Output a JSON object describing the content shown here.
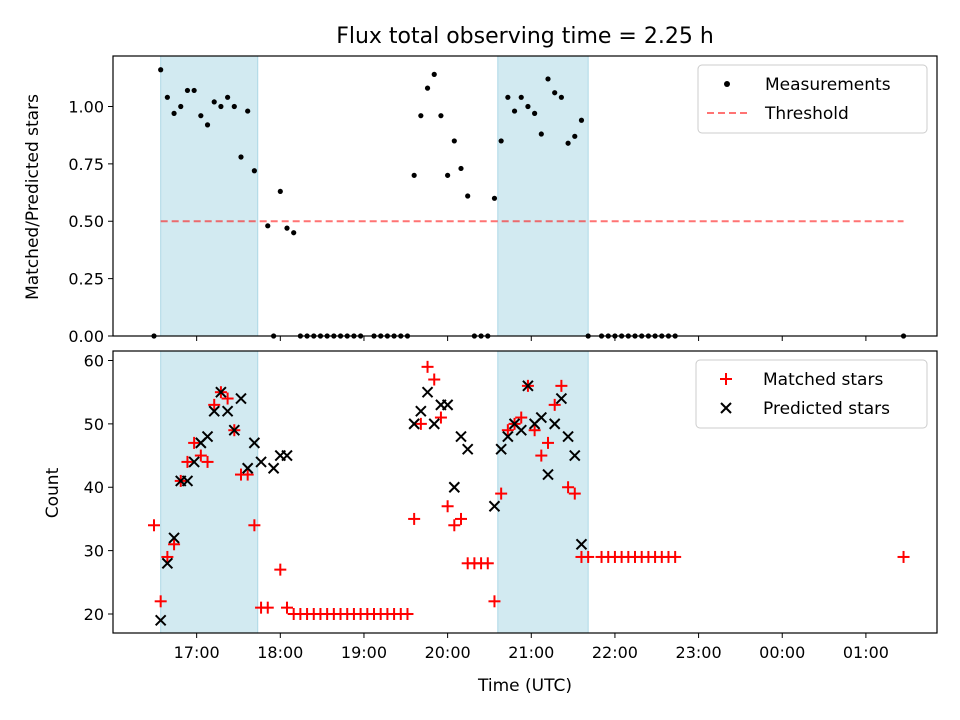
{
  "chart_data": {
    "title": "Flux total observing time = 2.25 h",
    "xlabel": "Time (UTC)",
    "x_ticks": [
      {
        "t": 17,
        "label": "17:00"
      },
      {
        "t": 18,
        "label": "18:00"
      },
      {
        "t": 19,
        "label": "19:00"
      },
      {
        "t": 20,
        "label": "20:00"
      },
      {
        "t": 21,
        "label": "21:00"
      },
      {
        "t": 22,
        "label": "22:00"
      },
      {
        "t": 23,
        "label": "23:00"
      },
      {
        "t": 24,
        "label": "00:00"
      },
      {
        "t": 25,
        "label": "01:00"
      }
    ],
    "xlim": [
      16.0,
      25.85
    ],
    "shaded_intervals": [
      [
        16.57,
        17.73
      ],
      [
        20.6,
        21.68
      ]
    ],
    "colors": {
      "shade": "#add8e6",
      "threshold": "#ff0000",
      "matched": "#ff0000",
      "predicted": "#000000",
      "measurement": "#000000"
    },
    "panels": [
      {
        "type": "scatter",
        "ylabel": "Matched/Predicted stars",
        "ylim": [
          0,
          1.22
        ],
        "y_ticks": [
          0.0,
          0.25,
          0.5,
          0.75,
          1.0
        ],
        "y_tick_labels": [
          "0.00",
          "0.25",
          "0.50",
          "0.75",
          "1.00"
        ],
        "legend": [
          "Measurements",
          "Threshold"
        ],
        "threshold": {
          "y": 0.5,
          "x_range": [
            16.57,
            25.45
          ]
        },
        "series": [
          {
            "name": "Measurements",
            "points": [
              [
                16.49,
                0.0
              ],
              [
                16.57,
                1.16
              ],
              [
                16.65,
                1.04
              ],
              [
                16.73,
                0.97
              ],
              [
                16.81,
                1.0
              ],
              [
                16.89,
                1.07
              ],
              [
                16.97,
                1.07
              ],
              [
                17.05,
                0.96
              ],
              [
                17.13,
                0.92
              ],
              [
                17.21,
                1.02
              ],
              [
                17.29,
                1.0
              ],
              [
                17.37,
                1.04
              ],
              [
                17.45,
                1.0
              ],
              [
                17.53,
                0.78
              ],
              [
                17.61,
                0.98
              ],
              [
                17.69,
                0.72
              ],
              [
                17.85,
                0.48
              ],
              [
                17.92,
                0.0
              ],
              [
                18.0,
                0.63
              ],
              [
                18.08,
                0.47
              ],
              [
                18.16,
                0.45
              ],
              [
                18.24,
                0.0
              ],
              [
                18.32,
                0.0
              ],
              [
                18.4,
                0.0
              ],
              [
                18.48,
                0.0
              ],
              [
                18.56,
                0.0
              ],
              [
                18.64,
                0.0
              ],
              [
                18.72,
                0.0
              ],
              [
                18.8,
                0.0
              ],
              [
                18.88,
                0.0
              ],
              [
                18.96,
                0.0
              ],
              [
                19.12,
                0.0
              ],
              [
                19.2,
                0.0
              ],
              [
                19.28,
                0.0
              ],
              [
                19.36,
                0.0
              ],
              [
                19.44,
                0.0
              ],
              [
                19.52,
                0.0
              ],
              [
                19.6,
                0.7
              ],
              [
                19.68,
                0.96
              ],
              [
                19.76,
                1.08
              ],
              [
                19.84,
                1.14
              ],
              [
                19.92,
                0.96
              ],
              [
                20.0,
                0.7
              ],
              [
                20.08,
                0.85
              ],
              [
                20.16,
                0.73
              ],
              [
                20.24,
                0.61
              ],
              [
                20.32,
                0.0
              ],
              [
                20.4,
                0.0
              ],
              [
                20.48,
                0.0
              ],
              [
                20.56,
                0.6
              ],
              [
                20.64,
                0.85
              ],
              [
                20.72,
                1.04
              ],
              [
                20.8,
                0.98
              ],
              [
                20.88,
                1.04
              ],
              [
                20.96,
                1.0
              ],
              [
                21.04,
                0.97
              ],
              [
                21.12,
                0.88
              ],
              [
                21.2,
                1.12
              ],
              [
                21.28,
                1.06
              ],
              [
                21.36,
                1.04
              ],
              [
                21.44,
                0.84
              ],
              [
                21.52,
                0.87
              ],
              [
                21.6,
                0.94
              ],
              [
                21.68,
                0.0
              ],
              [
                21.84,
                0.0
              ],
              [
                21.92,
                0.0
              ],
              [
                22.0,
                0.0
              ],
              [
                22.08,
                0.0
              ],
              [
                22.16,
                0.0
              ],
              [
                22.24,
                0.0
              ],
              [
                22.32,
                0.0
              ],
              [
                22.4,
                0.0
              ],
              [
                22.48,
                0.0
              ],
              [
                22.56,
                0.0
              ],
              [
                22.64,
                0.0
              ],
              [
                22.72,
                0.0
              ],
              [
                25.45,
                0.0
              ]
            ]
          }
        ]
      },
      {
        "type": "scatter",
        "ylabel": "Count",
        "ylim": [
          17,
          61.5
        ],
        "y_ticks": [
          20,
          30,
          40,
          50,
          60
        ],
        "y_tick_labels": [
          "20",
          "30",
          "40",
          "50",
          "60"
        ],
        "legend": [
          "Matched stars",
          "Predicted stars"
        ],
        "series": [
          {
            "name": "Matched stars",
            "marker": "plus",
            "points": [
              [
                16.49,
                34
              ],
              [
                16.57,
                22
              ],
              [
                16.65,
                29
              ],
              [
                16.73,
                31
              ],
              [
                16.81,
                41
              ],
              [
                16.89,
                44
              ],
              [
                16.97,
                47
              ],
              [
                17.05,
                45
              ],
              [
                17.13,
                44
              ],
              [
                17.21,
                53
              ],
              [
                17.29,
                55
              ],
              [
                17.37,
                54
              ],
              [
                17.45,
                49
              ],
              [
                17.53,
                42
              ],
              [
                17.61,
                42
              ],
              [
                17.69,
                34
              ],
              [
                17.77,
                21
              ],
              [
                17.85,
                21
              ],
              [
                18.0,
                27
              ],
              [
                18.08,
                21
              ],
              [
                18.16,
                20
              ],
              [
                18.24,
                20
              ],
              [
                18.32,
                20
              ],
              [
                18.4,
                20
              ],
              [
                18.48,
                20
              ],
              [
                18.56,
                20
              ],
              [
                18.64,
                20
              ],
              [
                18.72,
                20
              ],
              [
                18.8,
                20
              ],
              [
                18.88,
                20
              ],
              [
                18.96,
                20
              ],
              [
                19.04,
                20
              ],
              [
                19.12,
                20
              ],
              [
                19.2,
                20
              ],
              [
                19.28,
                20
              ],
              [
                19.36,
                20
              ],
              [
                19.44,
                20
              ],
              [
                19.52,
                20
              ],
              [
                19.6,
                35
              ],
              [
                19.68,
                50
              ],
              [
                19.76,
                59
              ],
              [
                19.84,
                57
              ],
              [
                19.92,
                51
              ],
              [
                20.0,
                37
              ],
              [
                20.08,
                34
              ],
              [
                20.16,
                35
              ],
              [
                20.24,
                28
              ],
              [
                20.32,
                28
              ],
              [
                20.4,
                28
              ],
              [
                20.48,
                28
              ],
              [
                20.56,
                22
              ],
              [
                20.64,
                39
              ],
              [
                20.72,
                49
              ],
              [
                20.8,
                50
              ],
              [
                20.88,
                51
              ],
              [
                20.96,
                56
              ],
              [
                21.04,
                49
              ],
              [
                21.12,
                45
              ],
              [
                21.2,
                47
              ],
              [
                21.28,
                53
              ],
              [
                21.36,
                56
              ],
              [
                21.44,
                40
              ],
              [
                21.52,
                39
              ],
              [
                21.6,
                29
              ],
              [
                21.68,
                29
              ],
              [
                21.84,
                29
              ],
              [
                21.92,
                29
              ],
              [
                22.0,
                29
              ],
              [
                22.08,
                29
              ],
              [
                22.16,
                29
              ],
              [
                22.24,
                29
              ],
              [
                22.32,
                29
              ],
              [
                22.4,
                29
              ],
              [
                22.48,
                29
              ],
              [
                22.56,
                29
              ],
              [
                22.64,
                29
              ],
              [
                22.72,
                29
              ],
              [
                25.45,
                29
              ]
            ]
          },
          {
            "name": "Predicted stars",
            "marker": "x",
            "points": [
              [
                16.57,
                19
              ],
              [
                16.65,
                28
              ],
              [
                16.73,
                32
              ],
              [
                16.81,
                41
              ],
              [
                16.89,
                41
              ],
              [
                16.97,
                44
              ],
              [
                17.05,
                47
              ],
              [
                17.13,
                48
              ],
              [
                17.21,
                52
              ],
              [
                17.29,
                55
              ],
              [
                17.37,
                52
              ],
              [
                17.45,
                49
              ],
              [
                17.53,
                54
              ],
              [
                17.61,
                43
              ],
              [
                17.69,
                47
              ],
              [
                17.77,
                44
              ],
              [
                17.92,
                43
              ],
              [
                18.0,
                45
              ],
              [
                18.08,
                45
              ],
              [
                19.6,
                50
              ],
              [
                19.68,
                52
              ],
              [
                19.76,
                55
              ],
              [
                19.84,
                50
              ],
              [
                19.92,
                53
              ],
              [
                20.0,
                53
              ],
              [
                20.08,
                40
              ],
              [
                20.16,
                48
              ],
              [
                20.24,
                46
              ],
              [
                20.56,
                37
              ],
              [
                20.64,
                46
              ],
              [
                20.72,
                48
              ],
              [
                20.8,
                50
              ],
              [
                20.88,
                49
              ],
              [
                20.96,
                56
              ],
              [
                21.04,
                50
              ],
              [
                21.12,
                51
              ],
              [
                21.2,
                42
              ],
              [
                21.28,
                50
              ],
              [
                21.36,
                54
              ],
              [
                21.44,
                48
              ],
              [
                21.52,
                45
              ],
              [
                21.6,
                31
              ]
            ]
          }
        ]
      }
    ]
  }
}
